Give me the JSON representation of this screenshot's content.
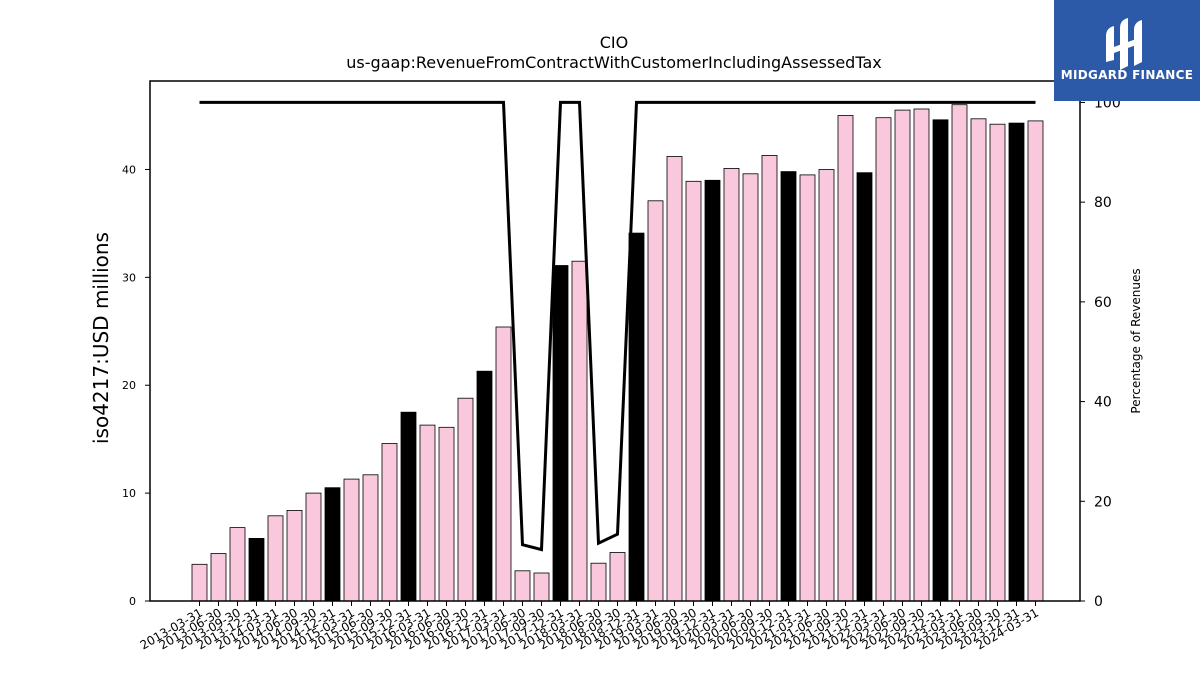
{
  "logo": {
    "brand": "MIDGARD FINANCE",
    "icon": "midgard-m-logo-icon"
  },
  "colors": {
    "bar_fill": "#f9c8dd",
    "bar_highlight": "#000000",
    "line": "#000000"
  },
  "chart_data": {
    "type": "bar",
    "title": "CIO",
    "subtitle": "us-gaap:RevenueFromContractWithCustomerIncludingAssessedTax",
    "ylabel": "iso4217:USD  millions",
    "ylabel_right": "Percentage of Revenues",
    "ylim": [
      0,
      48.2
    ],
    "yticks": [
      0,
      10,
      20,
      30,
      40
    ],
    "ylim_right": [
      0,
      104.3
    ],
    "yticks_right": [
      0,
      20,
      40,
      60,
      80,
      100
    ],
    "categories": [
      "2013-03-31",
      "2013-06-30",
      "2013-09-30",
      "2013-12-31",
      "2014-03-31",
      "2014-06-30",
      "2014-09-30",
      "2014-12-31",
      "2015-03-31",
      "2015-06-30",
      "2015-09-30",
      "2015-12-31",
      "2016-03-31",
      "2016-06-30",
      "2016-09-30",
      "2016-12-31",
      "2017-03-31",
      "2017-06-30",
      "2017-09-30",
      "2017-12-31",
      "2018-03-31",
      "2018-06-30",
      "2018-09-30",
      "2018-12-31",
      "2019-03-31",
      "2019-06-30",
      "2019-09-30",
      "2019-12-31",
      "2020-03-31",
      "2020-06-30",
      "2020-09-30",
      "2020-12-31",
      "2021-03-31",
      "2021-06-30",
      "2021-09-30",
      "2021-12-31",
      "2022-03-31",
      "2022-06-30",
      "2022-09-30",
      "2022-12-31",
      "2023-03-31",
      "2023-06-30",
      "2023-09-30",
      "2023-12-31",
      "2024-03-31"
    ],
    "series": [
      {
        "type": "bar",
        "values": [
          3.4,
          4.4,
          6.8,
          5.8,
          7.9,
          8.4,
          10.0,
          10.5,
          11.3,
          11.7,
          14.6,
          17.5,
          16.3,
          16.1,
          18.8,
          21.3,
          25.4,
          2.8,
          2.6,
          31.1,
          31.5,
          3.5,
          4.5,
          34.1,
          37.1,
          41.2,
          38.9,
          39.0,
          40.1,
          39.6,
          41.3,
          39.8,
          39.5,
          40.0,
          45.0,
          39.7,
          44.8,
          45.5,
          45.6,
          44.6,
          46.0,
          44.7,
          44.2,
          44.3,
          44.5
        ],
        "highlight": [
          false,
          false,
          false,
          true,
          false,
          false,
          false,
          true,
          false,
          false,
          false,
          true,
          false,
          false,
          false,
          true,
          false,
          false,
          false,
          true,
          false,
          false,
          false,
          true,
          false,
          false,
          false,
          true,
          false,
          false,
          false,
          true,
          false,
          false,
          false,
          true,
          false,
          false,
          false,
          true,
          false,
          false,
          false,
          true,
          false
        ]
      },
      {
        "type": "line",
        "axis": "right",
        "values": [
          100,
          100,
          100,
          100,
          100,
          100,
          100,
          100,
          100,
          100,
          100,
          100,
          100,
          100,
          100,
          100,
          100,
          11.3,
          10.3,
          100,
          100,
          11.6,
          13.4,
          100,
          100,
          100,
          100,
          100,
          100,
          100,
          100,
          100,
          100,
          100,
          100,
          100,
          100,
          100,
          100,
          100,
          100,
          100,
          100,
          100,
          100
        ]
      }
    ]
  }
}
